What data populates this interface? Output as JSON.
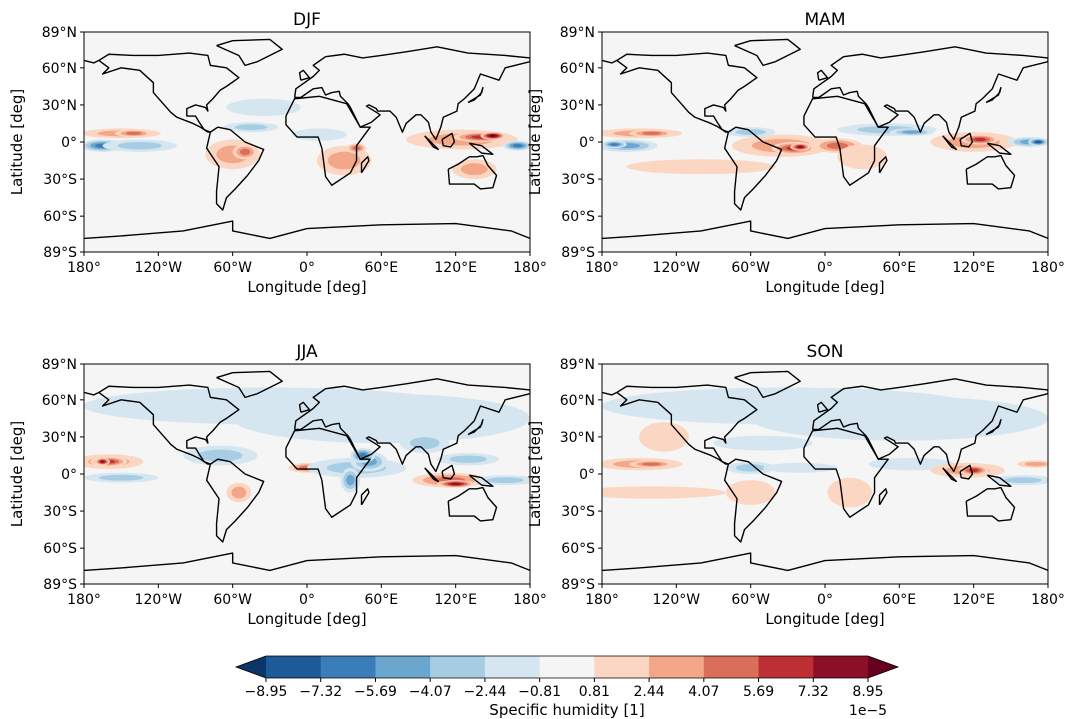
{
  "chart_data": {
    "type": "heatmap",
    "projection": "equirectangular",
    "panels": [
      {
        "title": "DJF",
        "features": [
          [
            -165,
            -3,
            18,
            5,
            -4
          ],
          [
            -135,
            -3,
            30,
            5,
            -2
          ],
          [
            -150,
            7,
            32,
            4,
            2
          ],
          [
            -140,
            7,
            15,
            3,
            3
          ],
          [
            -60,
            -10,
            22,
            12,
            2
          ],
          [
            -50,
            -8,
            10,
            6,
            3
          ],
          [
            30,
            -15,
            22,
            12,
            2
          ],
          [
            40,
            -5,
            8,
            4,
            3
          ],
          [
            125,
            2,
            45,
            8,
            2
          ],
          [
            140,
            4,
            22,
            4,
            4
          ],
          [
            150,
            5,
            10,
            3,
            6
          ],
          [
            -45,
            12,
            22,
            4,
            -2
          ],
          [
            10,
            6,
            22,
            5,
            -1
          ],
          [
            -35,
            28,
            30,
            7,
            -1
          ],
          [
            170,
            -3,
            12,
            4,
            -4
          ],
          [
            135,
            -22,
            18,
            8,
            2
          ]
        ]
      },
      {
        "title": "MAM",
        "features": [
          [
            -160,
            -3,
            25,
            5,
            -3
          ],
          [
            -170,
            -2,
            10,
            3,
            -4
          ],
          [
            -150,
            7,
            35,
            4,
            2
          ],
          [
            -140,
            7,
            18,
            3,
            3
          ],
          [
            -35,
            -3,
            40,
            9,
            2
          ],
          [
            -25,
            -5,
            18,
            5,
            4
          ],
          [
            -20,
            -4,
            8,
            3,
            5
          ],
          [
            10,
            -3,
            20,
            6,
            3
          ],
          [
            50,
            10,
            40,
            5,
            -2
          ],
          [
            70,
            8,
            18,
            3,
            -3
          ],
          [
            -60,
            8,
            20,
            4,
            -2
          ],
          [
            120,
            0,
            35,
            8,
            2
          ],
          [
            125,
            2,
            15,
            4,
            4
          ],
          [
            165,
            0,
            18,
            4,
            -3
          ],
          [
            172,
            0,
            8,
            3,
            -5
          ],
          [
            -100,
            -20,
            60,
            6,
            1
          ],
          [
            30,
            -12,
            20,
            10,
            1
          ]
        ]
      },
      {
        "title": "JJA",
        "features": [
          [
            -30,
            55,
            150,
            15,
            -1
          ],
          [
            60,
            45,
            120,
            20,
            -1
          ],
          [
            -160,
            10,
            28,
            6,
            2
          ],
          [
            -160,
            10,
            15,
            4,
            4
          ],
          [
            -165,
            10,
            6,
            3,
            5
          ],
          [
            -150,
            -3,
            30,
            4,
            -2
          ],
          [
            -70,
            15,
            30,
            8,
            -2
          ],
          [
            -55,
            -15,
            10,
            8,
            2
          ],
          [
            0,
            5,
            15,
            4,
            3
          ],
          [
            40,
            5,
            40,
            8,
            -2
          ],
          [
            50,
            10,
            15,
            8,
            -3
          ],
          [
            45,
            15,
            10,
            6,
            -4
          ],
          [
            35,
            -5,
            8,
            10,
            -3
          ],
          [
            115,
            -5,
            30,
            6,
            3
          ],
          [
            120,
            -8,
            15,
            3,
            5
          ],
          [
            130,
            12,
            25,
            5,
            -2
          ],
          [
            160,
            -5,
            25,
            4,
            -2
          ],
          [
            95,
            25,
            20,
            8,
            -2
          ]
        ]
      },
      {
        "title": "SON",
        "features": [
          [
            -30,
            55,
            150,
            15,
            -1
          ],
          [
            60,
            45,
            120,
            18,
            -1
          ],
          [
            -150,
            8,
            35,
            5,
            2
          ],
          [
            -140,
            8,
            18,
            3,
            3
          ],
          [
            -130,
            30,
            20,
            12,
            1
          ],
          [
            -140,
            -15,
            60,
            5,
            1
          ],
          [
            -60,
            5,
            20,
            5,
            -2
          ],
          [
            -60,
            -15,
            20,
            10,
            1
          ],
          [
            -20,
            5,
            30,
            4,
            -1
          ],
          [
            20,
            -15,
            18,
            12,
            1
          ],
          [
            70,
            8,
            35,
            5,
            -1
          ],
          [
            115,
            3,
            30,
            6,
            2
          ],
          [
            120,
            3,
            12,
            4,
            4
          ],
          [
            160,
            -5,
            25,
            4,
            -2
          ],
          [
            170,
            8,
            15,
            3,
            2
          ],
          [
            -50,
            25,
            40,
            6,
            -1
          ]
        ]
      }
    ],
    "xlabel": "Longitude [deg]",
    "ylabel": "Latitude [deg]",
    "xlim": [
      -180,
      180
    ],
    "ylim": [
      -89,
      89
    ],
    "xticks": [
      -180,
      -120,
      -60,
      0,
      60,
      120,
      180
    ],
    "xticklabels": [
      "180°",
      "120°W",
      "60°W",
      "0°",
      "60°E",
      "120°E",
      "180°"
    ],
    "yticks": [
      89,
      60,
      30,
      0,
      -30,
      -60,
      -89
    ],
    "yticklabels": [
      "89°N",
      "60°N",
      "30°N",
      "0°",
      "30°S",
      "60°S",
      "89°S"
    ],
    "colorbar": {
      "label": "Specific humidity [1]",
      "scale_label": "1e−5",
      "levels": [
        -8.95,
        -7.32,
        -5.69,
        -4.07,
        -2.44,
        -0.81,
        0.81,
        2.44,
        4.07,
        5.69,
        7.32,
        8.95
      ],
      "level_labels": [
        "−8.95",
        "−7.32",
        "−5.69",
        "−4.07",
        "−2.44",
        "−0.81",
        "0.81",
        "2.44",
        "4.07",
        "5.69",
        "7.32",
        "8.95"
      ],
      "colormap": "RdBu_r",
      "extend": "both",
      "colors": [
        "#0b3668",
        "#1d5a9a",
        "#3a7db9",
        "#6aa6cd",
        "#a6cde3",
        "#d6e6f0",
        "#f4f5f4",
        "#fbd7c3",
        "#f3a788",
        "#db6e5a",
        "#bd2f33",
        "#8c0f28",
        "#67001f"
      ]
    }
  }
}
